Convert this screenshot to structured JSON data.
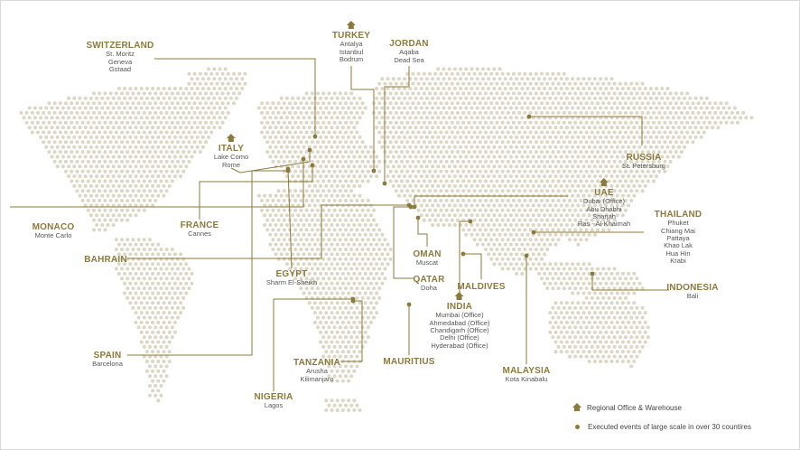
{
  "accent_color": "#8b7a3c",
  "dot_color": "#ddd6c4",
  "locations": [
    {
      "id": "switzerland",
      "name": "SWITZERLAND",
      "cities": [
        "St. Moritz",
        "Geneva",
        "Gstaad"
      ],
      "regional_office": false
    },
    {
      "id": "turkey",
      "name": "TURKEY",
      "cities": [
        "Antalya",
        "Istanbul",
        "Bodrum"
      ],
      "regional_office": true
    },
    {
      "id": "jordan",
      "name": "JORDAN",
      "cities": [
        "Aqaba",
        "Dead Sea"
      ],
      "regional_office": false
    },
    {
      "id": "italy",
      "name": "ITALY",
      "cities": [
        "Lake Como",
        "Rome"
      ],
      "regional_office": true
    },
    {
      "id": "russia",
      "name": "RUSSIA",
      "cities": [
        "St. Petersburg"
      ],
      "regional_office": false
    },
    {
      "id": "uae",
      "name": "UAE",
      "cities": [
        "Dubai (Office)",
        "Abu Dhabhi",
        "Sharjah",
        "Ras - Al-Khaimah"
      ],
      "regional_office": true
    },
    {
      "id": "thailand",
      "name": "THAILAND",
      "cities": [
        "Phuket",
        "Chiang Mai",
        "Pattaya",
        "Khao Lak",
        "Hua Hin",
        "Krabi"
      ],
      "regional_office": false
    },
    {
      "id": "monaco",
      "name": "MONACO",
      "cities": [
        "Monte Carlo"
      ],
      "regional_office": false
    },
    {
      "id": "france",
      "name": "FRANCE",
      "cities": [
        "Cannes"
      ],
      "regional_office": false
    },
    {
      "id": "oman",
      "name": "OMAN",
      "cities": [
        "Muscat"
      ],
      "regional_office": false
    },
    {
      "id": "bahrain",
      "name": "BAHRAIN",
      "cities": [],
      "regional_office": false
    },
    {
      "id": "egypt",
      "name": "EGYPT",
      "cities": [
        "Sharm El-Sheikh"
      ],
      "regional_office": false
    },
    {
      "id": "qatar",
      "name": "QATAR",
      "cities": [
        "Doha"
      ],
      "regional_office": false
    },
    {
      "id": "maldives",
      "name": "MALDIVES",
      "cities": [],
      "regional_office": false
    },
    {
      "id": "indonesia",
      "name": "INDONESIA",
      "cities": [
        "Bali"
      ],
      "regional_office": false
    },
    {
      "id": "india",
      "name": "INDIA",
      "cities": [
        "Mumbai (Office)",
        "Ahmedabad (Office)",
        "Chandigarh (Office)",
        "Delhi (Office)",
        "Hyderabad (Office)"
      ],
      "regional_office": true
    },
    {
      "id": "spain",
      "name": "SPAIN",
      "cities": [
        "Barcelona"
      ],
      "regional_office": false
    },
    {
      "id": "tanzania",
      "name": "TANZANIA",
      "cities": [
        "Arusha",
        "Kilimanjaro"
      ],
      "regional_office": false
    },
    {
      "id": "mauritius",
      "name": "MAURITIUS",
      "cities": [],
      "regional_office": false
    },
    {
      "id": "malaysia",
      "name": "MALAYSIA",
      "cities": [
        "Kota Kinabalu"
      ],
      "regional_office": false
    },
    {
      "id": "nigeria",
      "name": "NIGERIA",
      "cities": [
        "Lagos"
      ],
      "regional_office": false
    }
  ],
  "legend": {
    "regional_office": "Regional Office & Warehouse",
    "executed_events": "Executed events of large scale in over 30 countires"
  }
}
